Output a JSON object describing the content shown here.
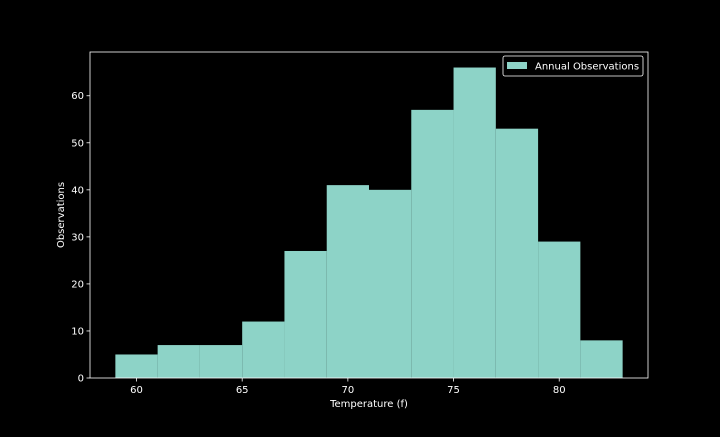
{
  "chart_data": {
    "type": "bar",
    "xlabel": "Temperature (f)",
    "ylabel": "Observations",
    "xlim": [
      57.8,
      84.2
    ],
    "ylim": [
      0,
      69.3
    ],
    "xticks": [
      60,
      65,
      70,
      75,
      80
    ],
    "xtick_labels": [
      "60",
      "65",
      "70",
      "75",
      "80"
    ],
    "yticks": [
      0,
      10,
      20,
      30,
      40,
      50,
      60
    ],
    "ytick_labels": [
      "0",
      "10",
      "20",
      "30",
      "40",
      "50",
      "60"
    ],
    "grid": false,
    "legend_position": "top-right",
    "series": [
      {
        "name": "Annual Observations",
        "color": "#8dd3c7",
        "bins": [
          {
            "start": 59,
            "end": 61,
            "value": 5
          },
          {
            "start": 61,
            "end": 63,
            "value": 7
          },
          {
            "start": 63,
            "end": 65,
            "value": 7
          },
          {
            "start": 65,
            "end": 67,
            "value": 12
          },
          {
            "start": 67,
            "end": 69,
            "value": 27
          },
          {
            "start": 69,
            "end": 71,
            "value": 41
          },
          {
            "start": 71,
            "end": 73,
            "value": 40
          },
          {
            "start": 73,
            "end": 75,
            "value": 57
          },
          {
            "start": 75,
            "end": 77,
            "value": 66
          },
          {
            "start": 77,
            "end": 79,
            "value": 53
          },
          {
            "start": 79,
            "end": 81,
            "value": 29
          },
          {
            "start": 81,
            "end": 83,
            "value": 8
          }
        ]
      }
    ],
    "colors": {
      "background": "#000000",
      "foreground": "#ffffff"
    }
  }
}
